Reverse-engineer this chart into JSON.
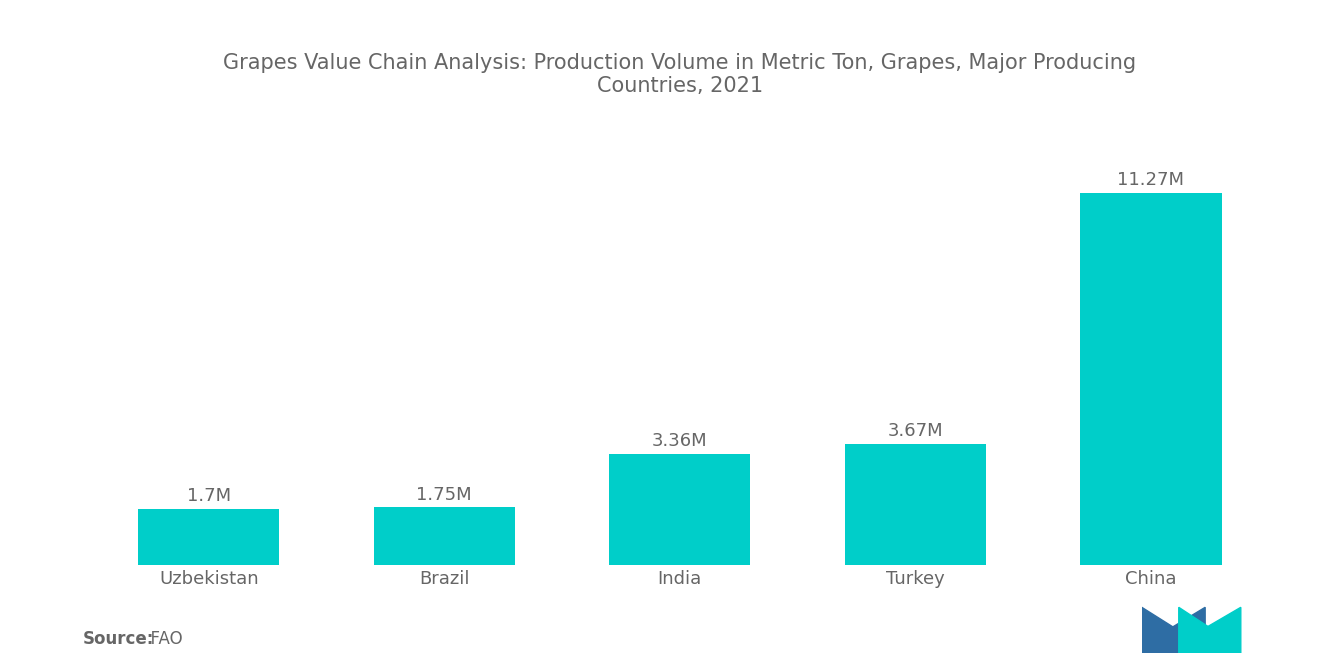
{
  "title": "Grapes Value Chain Analysis: Production Volume in Metric Ton, Grapes, Major Producing\nCountries, 2021",
  "categories": [
    "Uzbekistan",
    "Brazil",
    "India",
    "Turkey",
    "China"
  ],
  "values": [
    1.7,
    1.75,
    3.36,
    3.67,
    11.27
  ],
  "labels": [
    "1.7M",
    "1.75M",
    "3.36M",
    "3.67M",
    "11.27M"
  ],
  "bar_color": "#00CEC9",
  "background_color": "#ffffff",
  "title_color": "#666666",
  "label_color": "#666666",
  "tick_color": "#666666",
  "source_bold": "Source:",
  "source_normal": "  FAO",
  "ylim": [
    0,
    13.5
  ],
  "title_fontsize": 15,
  "label_fontsize": 13,
  "tick_fontsize": 13,
  "source_fontsize": 12,
  "bar_width": 0.6
}
